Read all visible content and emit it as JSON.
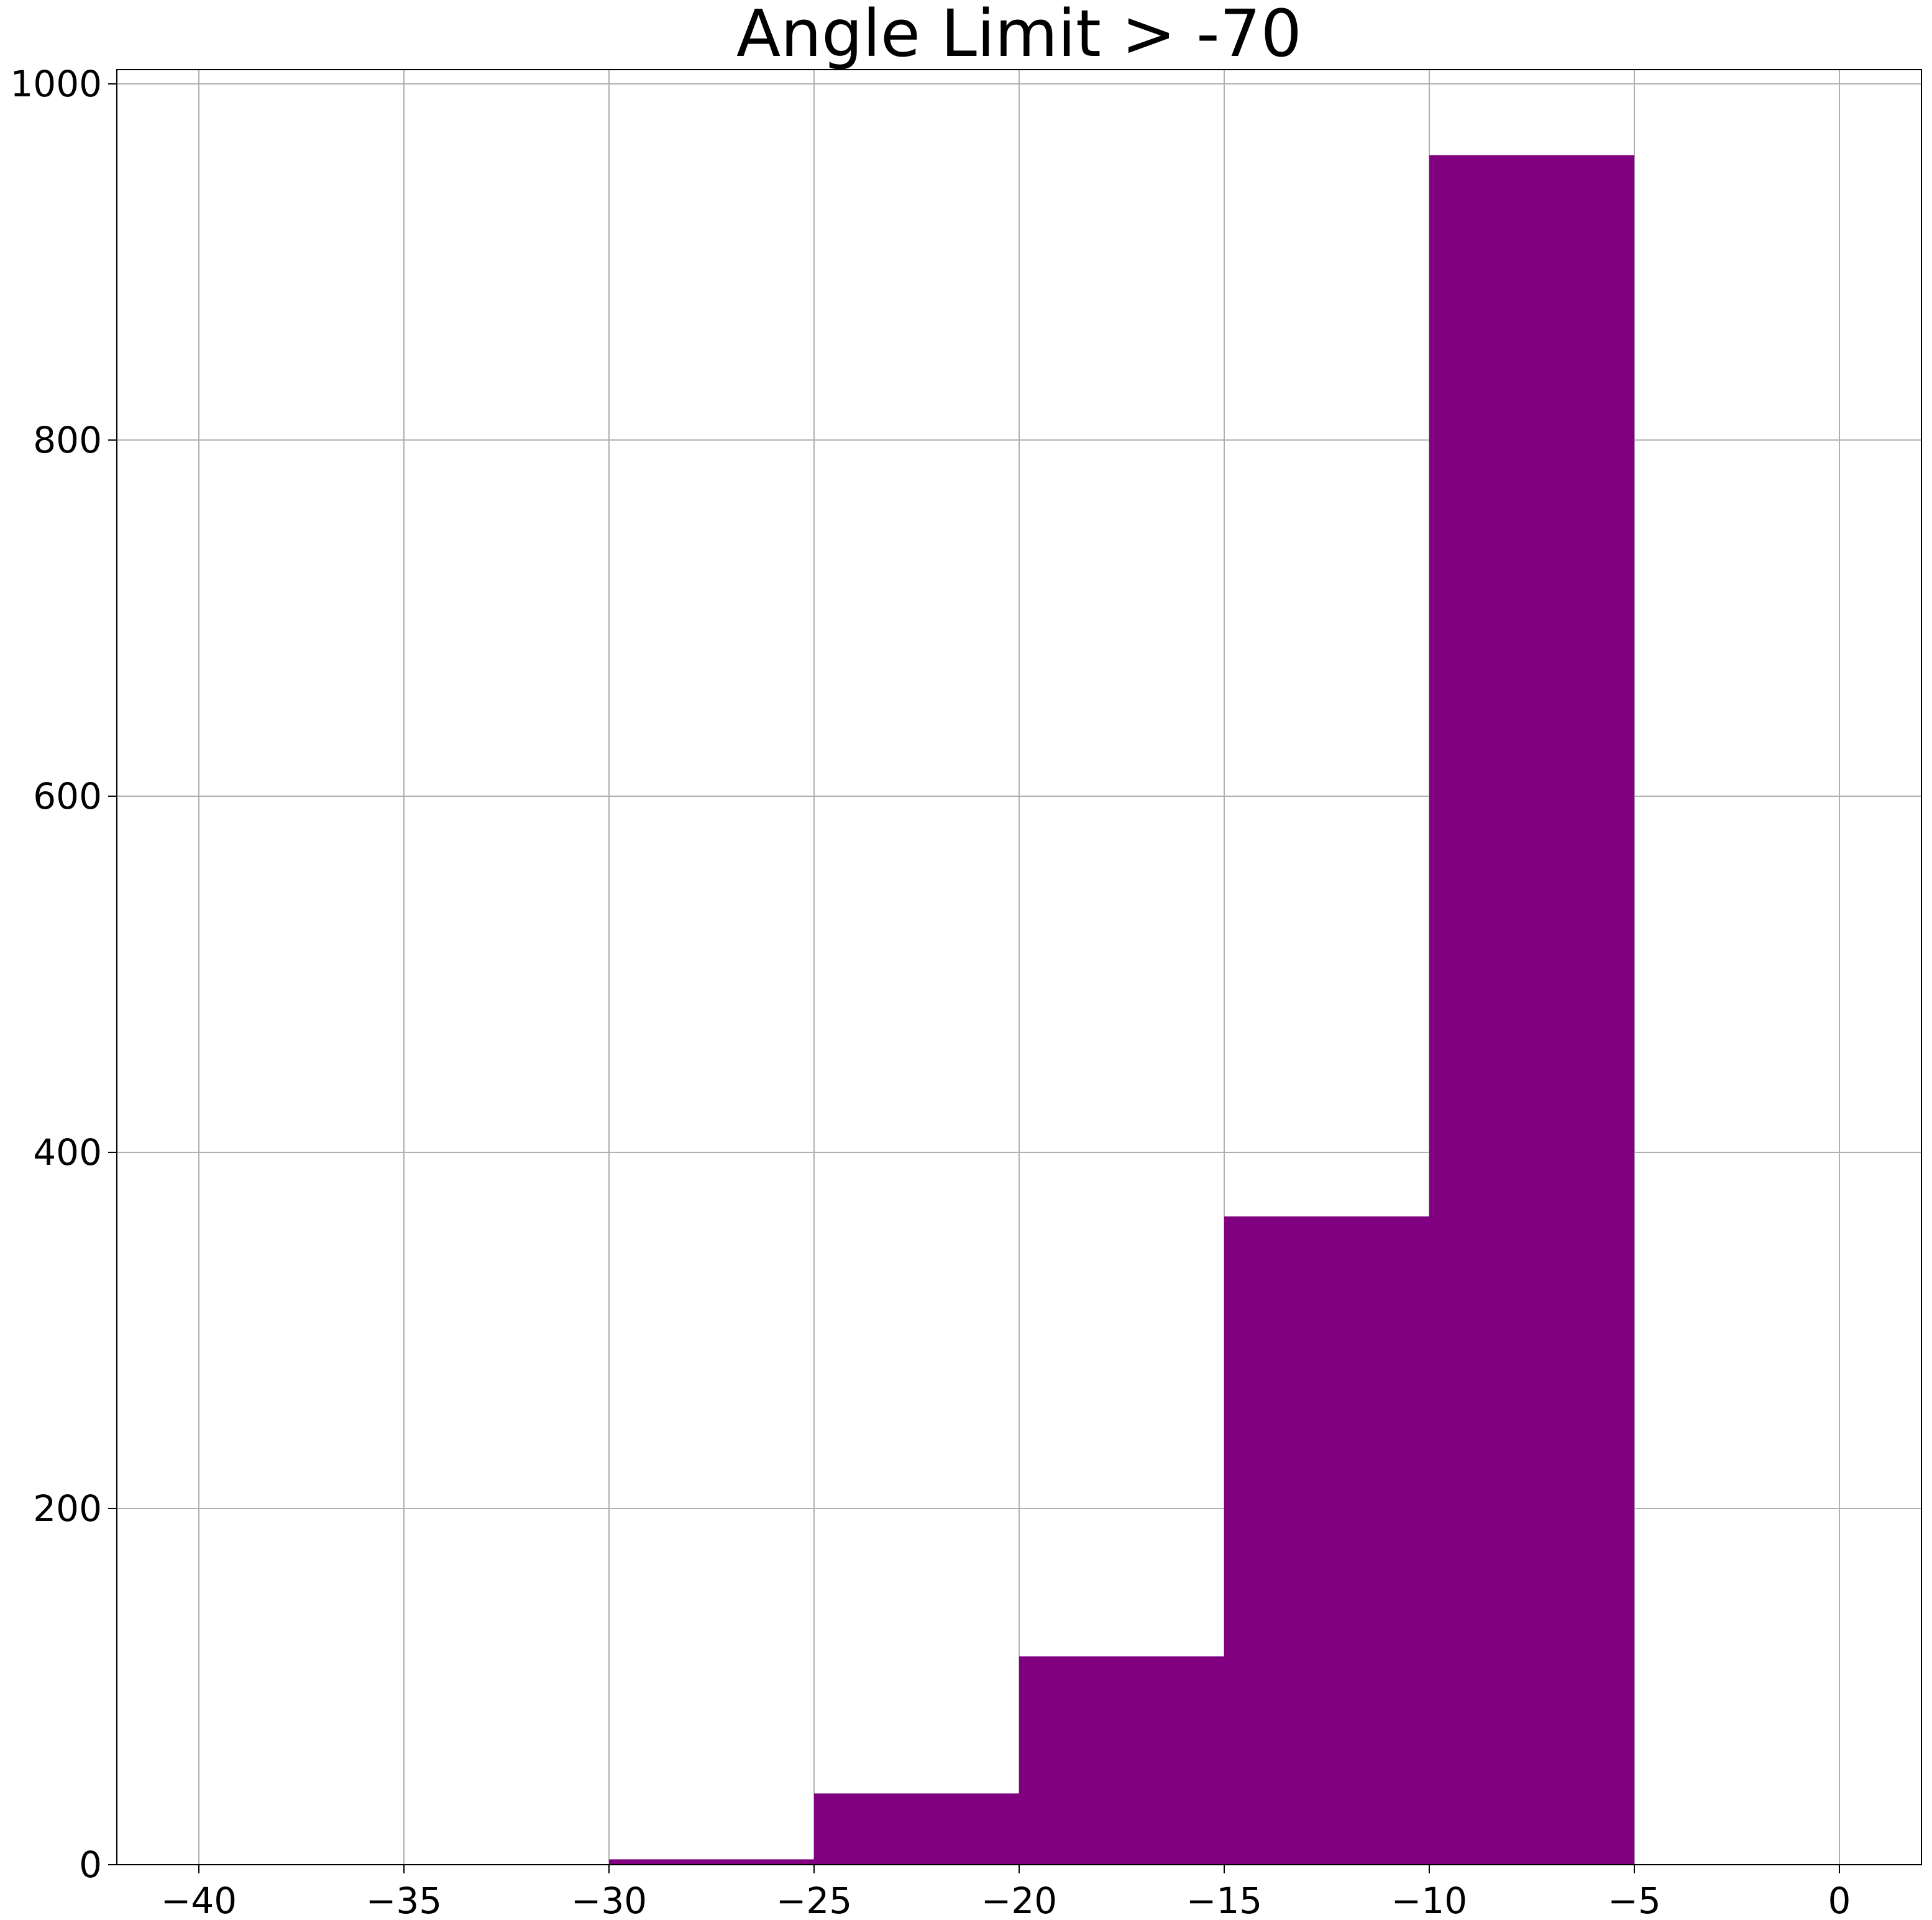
{
  "chart_data": {
    "type": "bar",
    "title": "Angle Limit > -70",
    "xlabel": "",
    "ylabel": "",
    "bins": [
      {
        "start": -30,
        "end": -25,
        "count": 3
      },
      {
        "start": -25,
        "end": -20,
        "count": 40
      },
      {
        "start": -20,
        "end": -15,
        "count": 117
      },
      {
        "start": -15,
        "end": -10,
        "count": 364
      },
      {
        "start": -10,
        "end": -5,
        "count": 960
      }
    ],
    "xlim": [
      -42,
      2
    ],
    "ylim": [
      0,
      1008
    ],
    "x_ticks": [
      {
        "value": -40,
        "label": "−40"
      },
      {
        "value": -35,
        "label": "−35"
      },
      {
        "value": -30,
        "label": "−30"
      },
      {
        "value": -25,
        "label": "−25"
      },
      {
        "value": -20,
        "label": "−20"
      },
      {
        "value": -15,
        "label": "−15"
      },
      {
        "value": -10,
        "label": "−10"
      },
      {
        "value": -5,
        "label": "−5"
      },
      {
        "value": 0,
        "label": "0"
      }
    ],
    "y_ticks": [
      {
        "value": 0,
        "label": "0"
      },
      {
        "value": 200,
        "label": "200"
      },
      {
        "value": 400,
        "label": "400"
      },
      {
        "value": 600,
        "label": "600"
      },
      {
        "value": 800,
        "label": "800"
      },
      {
        "value": 1000,
        "label": "1000"
      }
    ],
    "grid": true,
    "bar_color": "#800080",
    "grid_color": "#b0b0b0"
  }
}
